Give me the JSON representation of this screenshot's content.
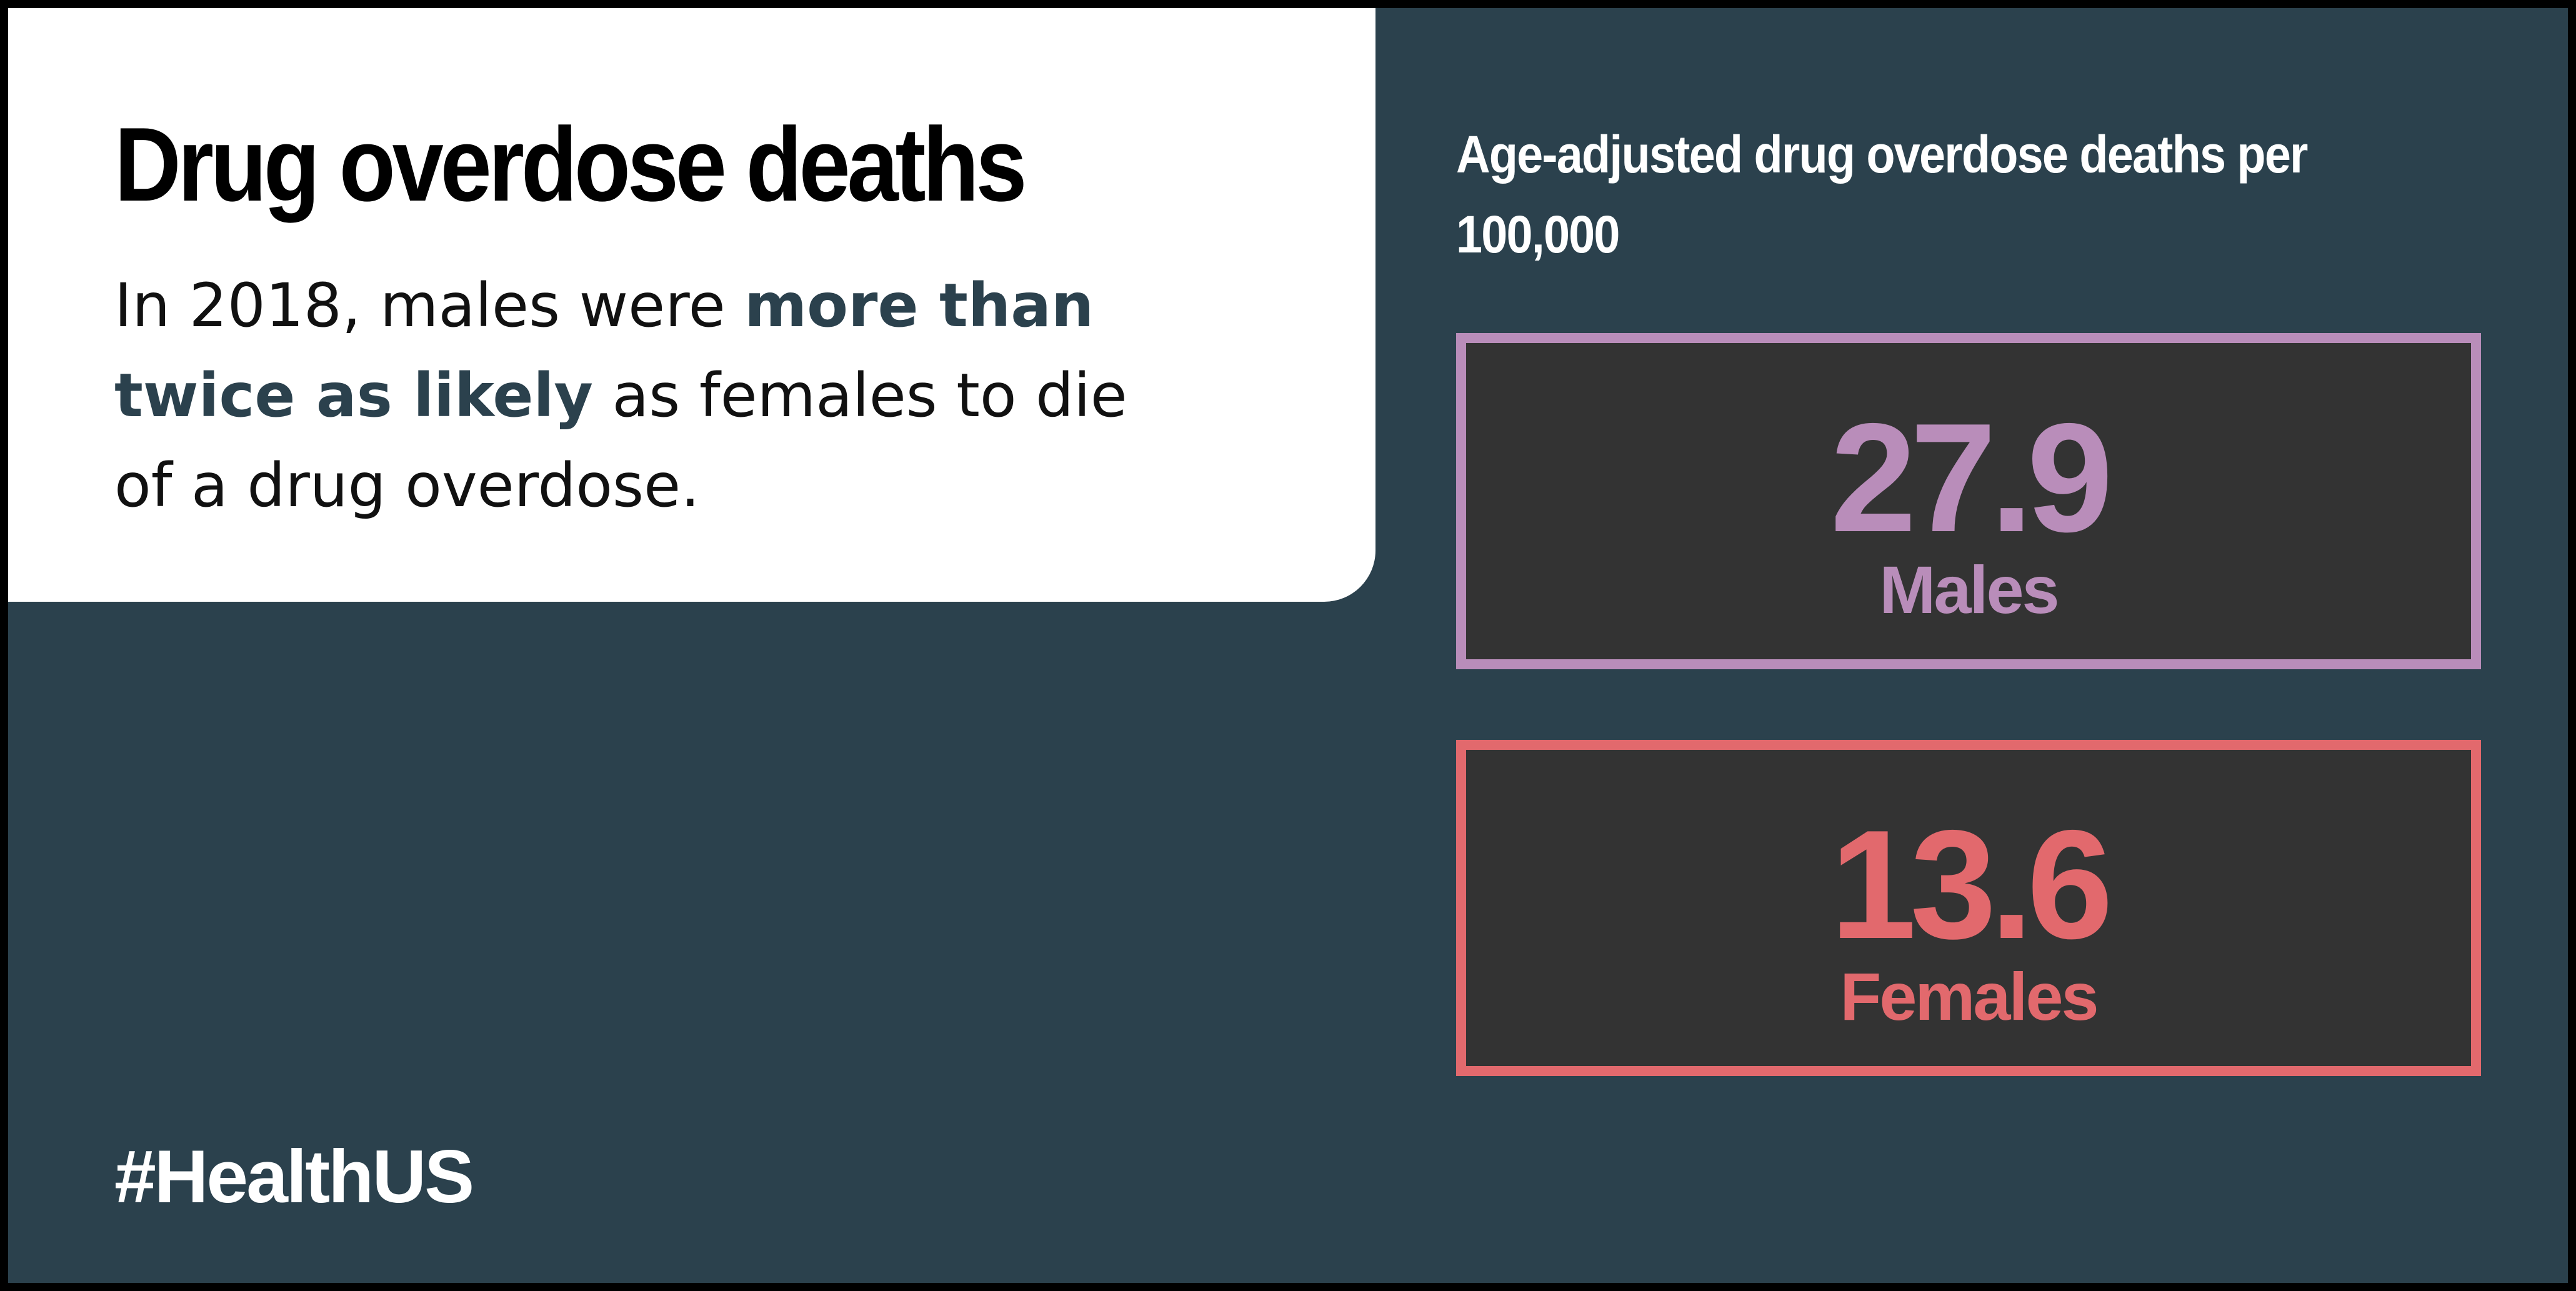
{
  "card": {
    "title": "Drug overdose deaths",
    "body_parts": [
      "In 2018, males were ",
      "more than twice as likely",
      " as females to die of a drug overdose."
    ]
  },
  "chart_label": "Age-adjusted drug overdose deaths per 100,000",
  "stats": {
    "males": {
      "value": "27.9",
      "label": "Males"
    },
    "females": {
      "value": "13.6",
      "label": "Females"
    }
  },
  "hashtag": "#HealthUS",
  "colors": {
    "background": "#2b414d",
    "card": "#ffffff",
    "males_accent": "#b98dba",
    "females_accent": "#e2696d",
    "stat_box_fill": "#333333"
  }
}
